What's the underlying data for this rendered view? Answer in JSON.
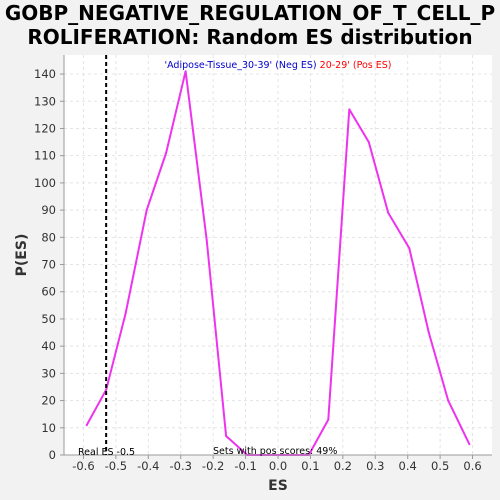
{
  "title_lines": [
    "GOBP_NEGATIVE_REGULATION_OF_T_CELL_P",
    "ROLIFERATION: Random ES distribution"
  ],
  "legend": {
    "neg_text": "'Adipose-Tissue_30-39' (Neg ES)",
    "pos_text": " 20-29' (Pos ES)",
    "neg_color": "#0000cc",
    "pos_color": "#ff0000"
  },
  "annotations": {
    "real_es": "Real ES -0.5",
    "pos_scores": "Sets with pos scores: 49%"
  },
  "colors": {
    "line": "#ee33ee",
    "marker": "#000000",
    "plot_bg": "#ffffff",
    "grid": "#e4e4e4"
  },
  "chart_data": {
    "type": "line",
    "xlabel": "ES",
    "ylabel": "P(ES)",
    "xlim": [
      -0.66,
      0.66
    ],
    "ylim": [
      0,
      147
    ],
    "xticks": [
      -0.6,
      -0.5,
      -0.4,
      -0.3,
      -0.2,
      -0.1,
      0.0,
      0.1,
      0.2,
      0.3,
      0.4,
      0.5,
      0.6
    ],
    "xtick_labels": [
      "-0.6",
      "-0.5",
      "-0.4",
      "-0.3",
      "-0.2",
      "-0.1",
      "0.0",
      "0.1",
      "0.2",
      "0.3",
      "0.4",
      "0.5",
      "0.6"
    ],
    "yticks": [
      0,
      10,
      20,
      30,
      40,
      50,
      60,
      70,
      80,
      90,
      100,
      110,
      120,
      130,
      140
    ],
    "ytick_labels": [
      "0",
      "10",
      "20",
      "30",
      "40",
      "50",
      "60",
      "70",
      "80",
      "90",
      "100",
      "110",
      "120",
      "130",
      "140"
    ],
    "grid": true,
    "real_es": -0.53,
    "series": [
      {
        "x": [
          -0.59,
          -0.53,
          -0.47,
          -0.405,
          -0.345,
          -0.285,
          -0.22,
          -0.16,
          -0.095,
          -0.035,
          0.03,
          0.095,
          0.155,
          0.22,
          0.28,
          0.34,
          0.405,
          0.465,
          0.525,
          0.59
        ],
        "y": [
          11,
          24,
          52,
          90,
          111,
          141,
          79,
          7,
          0,
          0,
          0,
          0,
          13,
          127,
          115,
          89,
          76,
          45,
          20,
          4
        ]
      }
    ]
  }
}
